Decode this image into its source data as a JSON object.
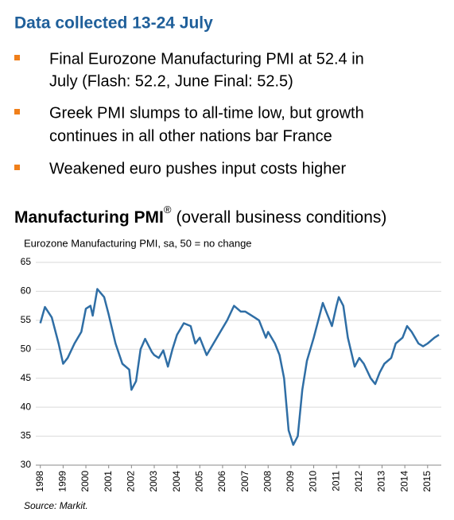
{
  "header": {
    "title": "Data collected 13-24 July"
  },
  "bullets": [
    [
      "Final Eurozone Manufacturing PMI at 52.4 in",
      "July (Flash: 52.2, June Final: 52.5)"
    ],
    [
      "Greek PMI slumps to all-time low, but growth",
      "continues in all other nations bar France"
    ],
    [
      "Weakened euro pushes input costs higher"
    ]
  ],
  "chart_data": {
    "type": "line",
    "title": "Manufacturing PMI",
    "title_mark": "®",
    "title_note": "(overall business conditions)",
    "subtitle": "Eurozone Manufacturing PMI, sa, 50 = no change",
    "source": "Source: Markit.",
    "xlim": [
      1997.8,
      2015.6
    ],
    "xticks": [
      1998,
      1999,
      2000,
      2001,
      2002,
      2003,
      2004,
      2005,
      2006,
      2007,
      2008,
      2009,
      2010,
      2011,
      2012,
      2013,
      2014,
      2015
    ],
    "ylim": [
      30,
      65
    ],
    "yticks": [
      30,
      35,
      40,
      45,
      50,
      55,
      60,
      65
    ],
    "grid": true,
    "series": [
      {
        "color": "#2f6ea5",
        "x": [
          1998.0,
          1998.2,
          1998.5,
          1998.8,
          1999.0,
          1999.2,
          1999.5,
          1999.8,
          2000.0,
          2000.2,
          2000.3,
          2000.5,
          2000.8,
          2001.0,
          2001.3,
          2001.6,
          2001.9,
          2002.0,
          2002.2,
          2002.4,
          2002.6,
          2002.9,
          2003.0,
          2003.2,
          2003.4,
          2003.6,
          2003.8,
          2004.0,
          2004.3,
          2004.6,
          2004.8,
          2005.0,
          2005.3,
          2005.6,
          2005.9,
          2006.2,
          2006.5,
          2006.8,
          2007.0,
          2007.4,
          2007.6,
          2007.9,
          2008.0,
          2008.3,
          2008.5,
          2008.7,
          2008.9,
          2009.1,
          2009.3,
          2009.5,
          2009.7,
          2010.0,
          2010.2,
          2010.4,
          2010.6,
          2010.8,
          2011.0,
          2011.1,
          2011.3,
          2011.5,
          2011.8,
          2012.0,
          2012.2,
          2012.5,
          2012.7,
          2012.9,
          2013.1,
          2013.4,
          2013.6,
          2013.9,
          2014.1,
          2014.3,
          2014.6,
          2014.8,
          2015.0,
          2015.3,
          2015.5
        ],
        "values": [
          54.5,
          57.3,
          55.5,
          51,
          47.5,
          48.5,
          51,
          53,
          57,
          57.5,
          55.8,
          60.4,
          59,
          56,
          51,
          47.5,
          46.5,
          43,
          44.5,
          50,
          51.8,
          49.5,
          49,
          48.5,
          49.8,
          47,
          50,
          52.5,
          54.5,
          54,
          51,
          52,
          49,
          51,
          53,
          55,
          57.5,
          56.5,
          56.5,
          55.5,
          55,
          52,
          53,
          51,
          49,
          45,
          36,
          33.5,
          35,
          43,
          48,
          52,
          55,
          58,
          56,
          54,
          57.5,
          59,
          57.5,
          52,
          47,
          48.5,
          47.5,
          45,
          44,
          46,
          47.5,
          48.5,
          51,
          52,
          54,
          53,
          51,
          50.5,
          51,
          52,
          52.5
        ]
      }
    ]
  }
}
